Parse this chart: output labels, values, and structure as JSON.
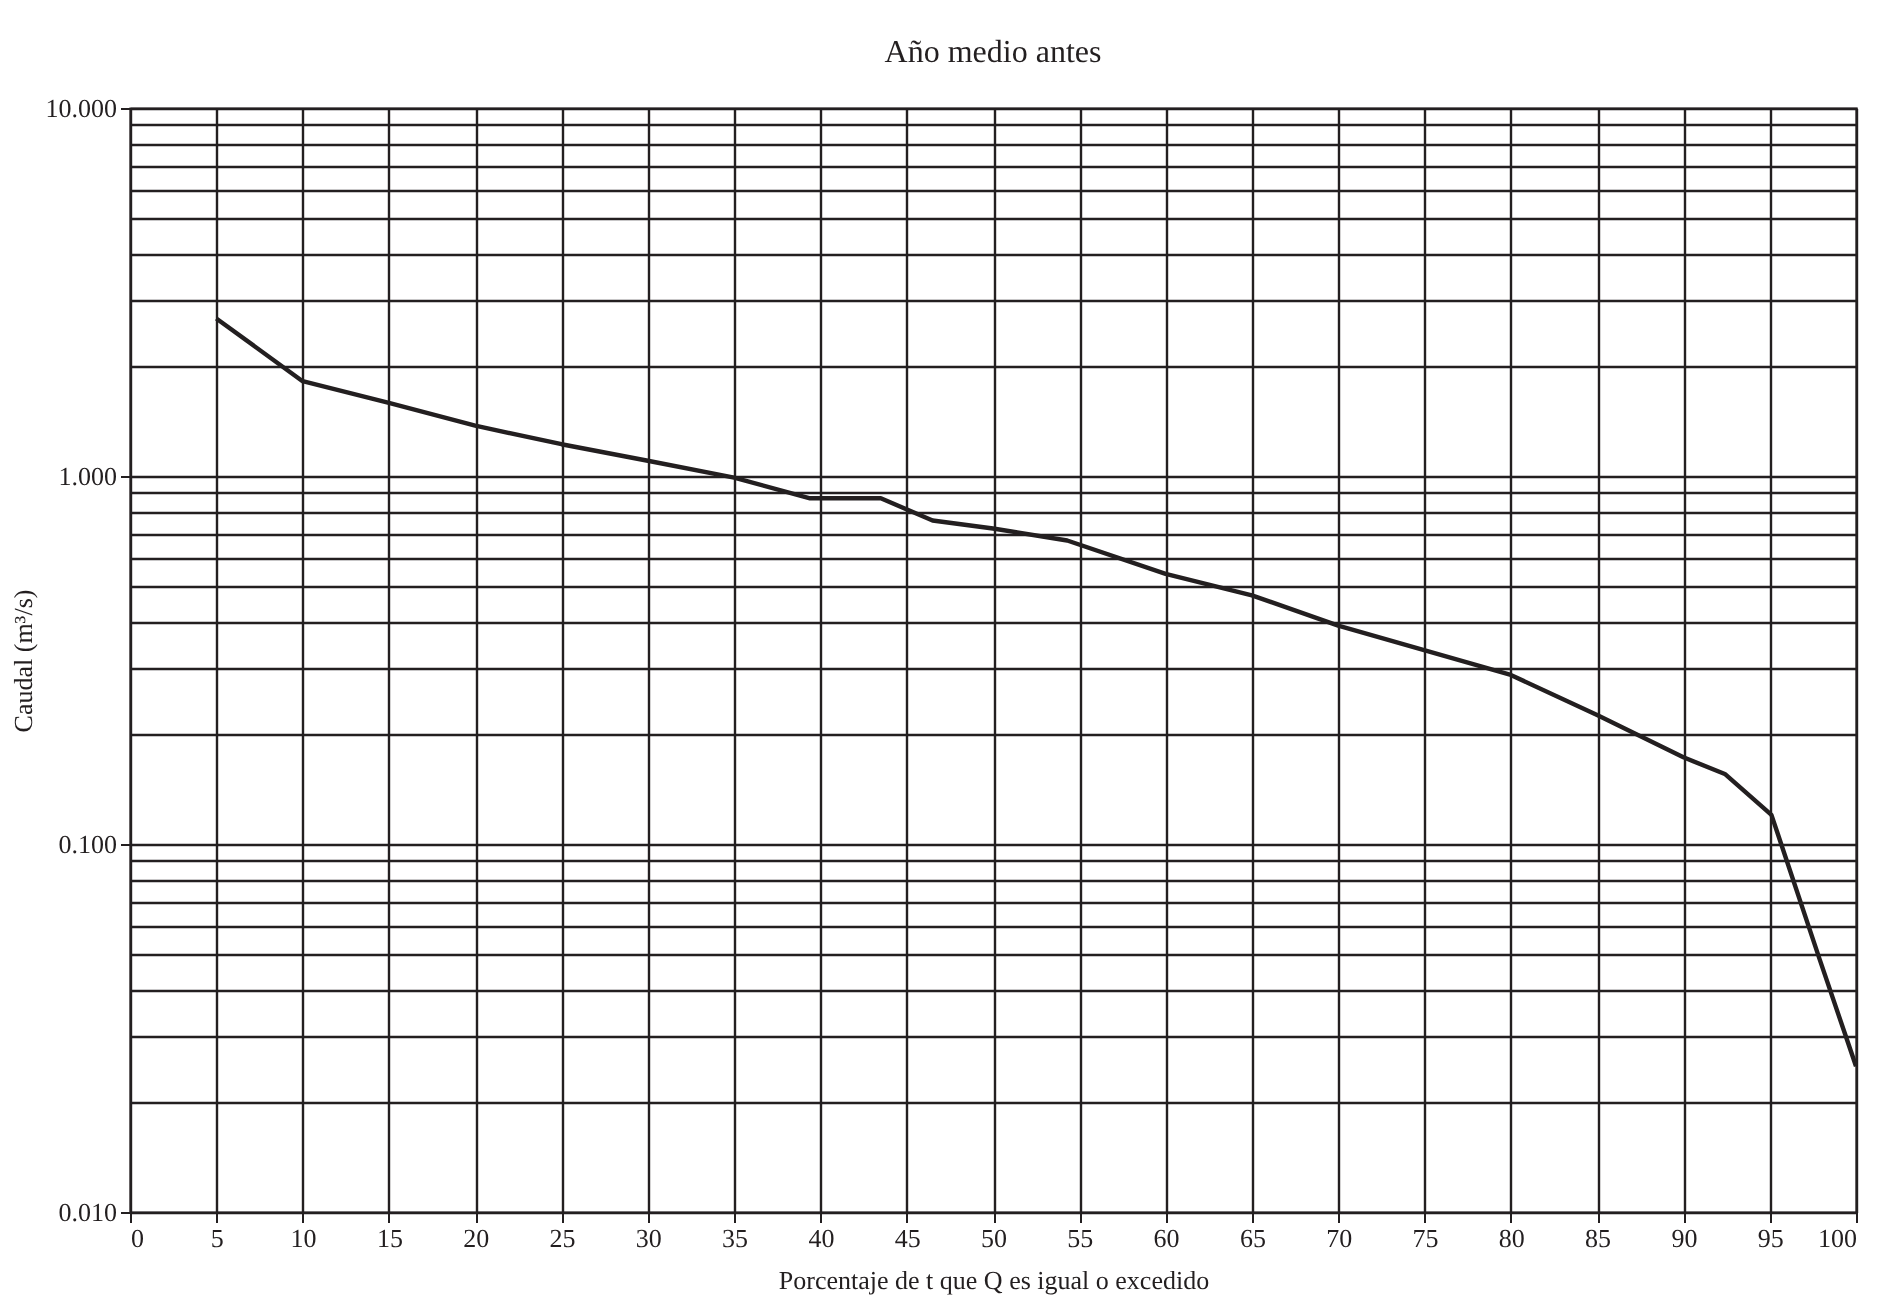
{
  "chart_data": {
    "type": "line",
    "title": "Año medio antes",
    "xlabel": "Porcentaje de t que Q es igual o excedido",
    "ylabel": "Caudal (m³/s)",
    "x": [
      5,
      10,
      15,
      20,
      25,
      30,
      35,
      39.4,
      43.5,
      46.5,
      50,
      54.3,
      60,
      65,
      70,
      80,
      85,
      90,
      92.4,
      95.1,
      97.9,
      100
    ],
    "series": [
      {
        "color": "#231f20",
        "values": [
          2.68,
          1.81,
          1.58,
          1.37,
          1.22,
          1.1,
          0.99,
          0.87,
          0.87,
          0.757,
          0.72,
          0.668,
          0.542,
          0.474,
          0.392,
          0.288,
          0.224,
          0.172,
          0.155,
          0.12,
          0.0485,
          0.0249
        ]
      }
    ],
    "log": true,
    "xlim": [
      0,
      100
    ],
    "xticks": [
      0,
      5,
      10,
      15,
      20,
      25,
      30,
      35,
      40,
      45,
      50,
      55,
      60,
      65,
      70,
      75,
      80,
      85,
      90,
      95,
      100
    ],
    "ylim": [
      0.01,
      10
    ],
    "yticks": [
      {
        "value": 0.01,
        "label": "0.010"
      },
      {
        "value": 0.02,
        "label": null
      },
      {
        "value": 0.03,
        "label": null
      },
      {
        "value": 0.04,
        "label": null
      },
      {
        "value": 0.05,
        "label": null
      },
      {
        "value": 0.06,
        "label": null
      },
      {
        "value": 0.07,
        "label": null
      },
      {
        "value": 0.08,
        "label": null
      },
      {
        "value": 0.09,
        "label": null
      },
      {
        "value": 0.1,
        "label": "0.100"
      },
      {
        "value": 0.2,
        "label": null
      },
      {
        "value": 0.3,
        "label": null
      },
      {
        "value": 0.4,
        "label": null
      },
      {
        "value": 0.5,
        "label": null
      },
      {
        "value": 0.6,
        "label": null
      },
      {
        "value": 0.7,
        "label": null
      },
      {
        "value": 0.8,
        "label": null
      },
      {
        "value": 0.9,
        "label": null
      },
      {
        "value": 1,
        "label": "1.000"
      },
      {
        "value": 2,
        "label": null
      },
      {
        "value": 3,
        "label": null
      },
      {
        "value": 4,
        "label": null
      },
      {
        "value": 5,
        "label": null
      },
      {
        "value": 6,
        "label": null
      },
      {
        "value": 7,
        "label": null
      },
      {
        "value": 8,
        "label": null
      },
      {
        "value": 9,
        "label": null
      },
      {
        "value": 10,
        "label": "10.000"
      }
    ],
    "grid": true,
    "legend": false,
    "marker": "none",
    "line_style": "solid"
  }
}
